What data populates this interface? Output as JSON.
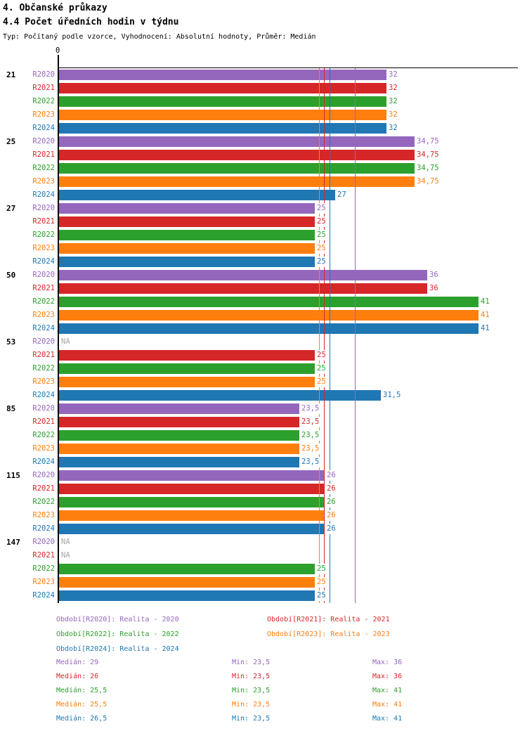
{
  "header": {
    "title": "4. Občanské průkazy",
    "subtitle": "4.4 Počet úředních hodin v týdnu",
    "meta": "Typ: Počítaný podle vzorce, Vyhodnocení: Absolutní hodnoty, Průměr: Medián"
  },
  "chart_data": {
    "type": "bar",
    "orientation": "horizontal",
    "title": "4.4 Počet úředních hodin v týdnu",
    "categories": [
      "21",
      "25",
      "27",
      "50",
      "53",
      "85",
      "115",
      "147"
    ],
    "series": [
      {
        "name": "R2020",
        "color": "#9467bd",
        "values": [
          32,
          34.75,
          25,
          36,
          null,
          23.5,
          26,
          null
        ],
        "labels": [
          "32",
          "34,75",
          "25",
          "36",
          "NA",
          "23,5",
          "26",
          "NA"
        ],
        "median": 29,
        "min": 23.5,
        "max": 36
      },
      {
        "name": "R2021",
        "color": "#d62728",
        "values": [
          32,
          34.75,
          25,
          36,
          25,
          23.5,
          26,
          null
        ],
        "labels": [
          "32",
          "34,75",
          "25",
          "36",
          "25",
          "23,5",
          "26",
          "NA"
        ],
        "median": 26,
        "min": 23.5,
        "max": 36
      },
      {
        "name": "R2022",
        "color": "#2ca02c",
        "values": [
          32,
          34.75,
          25,
          41,
          25,
          23.5,
          26,
          25
        ],
        "labels": [
          "32",
          "34,75",
          "25",
          "41",
          "25",
          "23,5",
          "26",
          "25"
        ],
        "median": 25.5,
        "min": 23.5,
        "max": 41
      },
      {
        "name": "R2023",
        "color": "#ff7f0e",
        "values": [
          32,
          34.75,
          25,
          41,
          25,
          23.5,
          26,
          25
        ],
        "labels": [
          "32",
          "34,75",
          "25",
          "41",
          "25",
          "23,5",
          "26",
          "25"
        ],
        "median": 25.5,
        "min": 23.5,
        "max": 41
      },
      {
        "name": "R2024",
        "color": "#1f77b4",
        "values": [
          32,
          27,
          25,
          41,
          31.5,
          23.5,
          26,
          25
        ],
        "labels": [
          "32",
          "27",
          "25",
          "41",
          "31,5",
          "23,5",
          "26",
          "25"
        ],
        "median": 26.5,
        "min": 23.5,
        "max": 41
      }
    ],
    "x_axis": {
      "zero_label": "0",
      "min": 0,
      "max": 44.8,
      "grid": false
    },
    "median_lines_shown": true,
    "na_text": "NA",
    "na_color": "#a6a6a6",
    "legend_position": "bottom"
  },
  "legend": {
    "items": [
      {
        "year": "R2020",
        "text": "Období[R2020]: Realita - 2020",
        "row": 0,
        "col": 0
      },
      {
        "year": "R2021",
        "text": "Období[R2021]: Realita - 2021",
        "row": 0,
        "col": 1
      },
      {
        "year": "R2022",
        "text": "Období[R2022]: Realita - 2022",
        "row": 1,
        "col": 0
      },
      {
        "year": "R2023",
        "text": "Období[R2023]: Realita - 2023",
        "row": 1,
        "col": 1
      },
      {
        "year": "R2024",
        "text": "Období[R2024]: Realita - 2024",
        "row": 2,
        "col": 0
      }
    ]
  },
  "stats": {
    "rows": [
      {
        "year": "R2020",
        "median": "Medián: 29",
        "min": "Min: 23,5",
        "max": "Max: 36"
      },
      {
        "year": "R2021",
        "median": "Medián: 26",
        "min": "Min: 23,5",
        "max": "Max: 36"
      },
      {
        "year": "R2022",
        "median": "Medián: 25,5",
        "min": "Min: 23,5",
        "max": "Max: 41"
      },
      {
        "year": "R2023",
        "median": "Medián: 25,5",
        "min": "Min: 23,5",
        "max": "Max: 41"
      },
      {
        "year": "R2024",
        "median": "Medián: 26,5",
        "min": "Min: 23,5",
        "max": "Max: 41"
      }
    ]
  }
}
